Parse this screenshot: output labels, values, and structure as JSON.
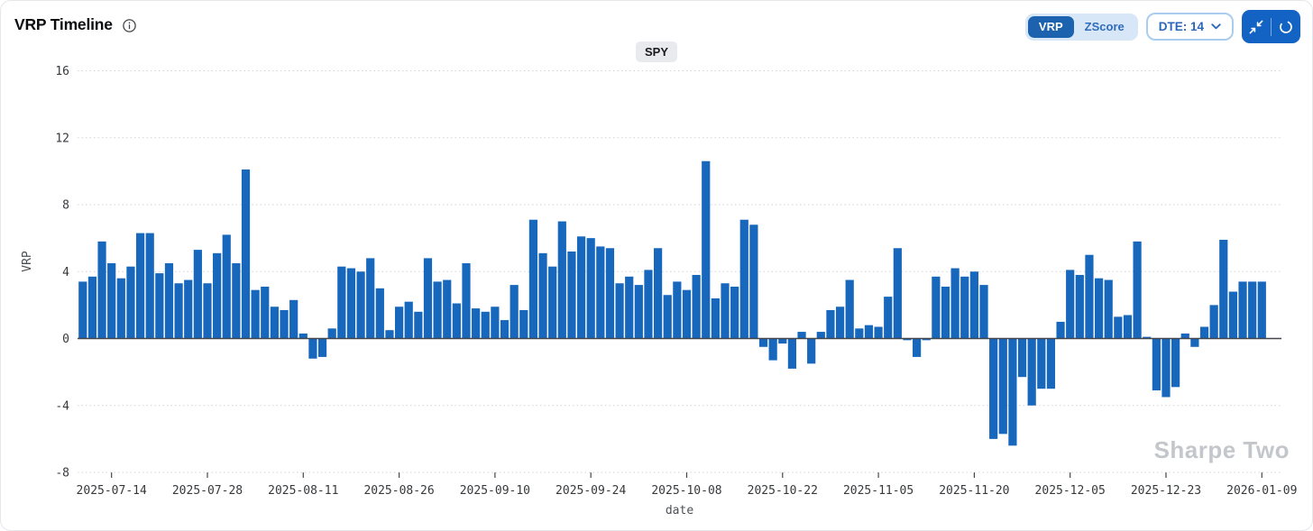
{
  "header": {
    "title": "VRP Timeline"
  },
  "controls": {
    "toggle": {
      "options": [
        "VRP",
        "ZScore"
      ],
      "selected": "VRP"
    },
    "dte_label": "DTE: 14"
  },
  "watermark": "Sharpe Two",
  "chart_data": {
    "type": "bar",
    "title": "VRP Timeline",
    "symbol": "SPY",
    "xlabel": "date",
    "ylabel": "VRP",
    "ylim": [
      -8,
      16
    ],
    "yticks": [
      16,
      12,
      8,
      4,
      0,
      -4,
      -8
    ],
    "grid": true,
    "legend": "none",
    "bar_color": "#1767bd",
    "zero_line_color": "#43474b",
    "grid_color": "#cfd3d8",
    "x_tick_labels": [
      "2025-07-14",
      "2025-07-28",
      "2025-08-11",
      "2025-08-26",
      "2025-09-10",
      "2025-09-24",
      "2025-10-08",
      "2025-10-22",
      "2025-11-05",
      "2025-11-20",
      "2025-12-05",
      "2025-12-23",
      "2026-01-09"
    ],
    "x_tick_indices": [
      3,
      13,
      23,
      33,
      43,
      53,
      63,
      73,
      83,
      93,
      103,
      113,
      123
    ],
    "values": [
      3.4,
      3.7,
      5.8,
      4.5,
      3.6,
      4.3,
      6.3,
      6.3,
      3.9,
      4.5,
      3.3,
      3.5,
      5.3,
      3.3,
      5.1,
      6.2,
      4.5,
      10.1,
      2.9,
      3.1,
      1.9,
      1.7,
      2.3,
      0.3,
      -1.2,
      -1.1,
      0.6,
      4.3,
      4.2,
      4.0,
      4.8,
      3.0,
      0.5,
      1.9,
      2.2,
      1.6,
      4.8,
      3.4,
      3.5,
      2.1,
      4.5,
      1.8,
      1.6,
      1.9,
      1.1,
      3.2,
      1.7,
      7.1,
      5.1,
      4.3,
      7.0,
      5.2,
      6.1,
      6.0,
      5.5,
      5.4,
      3.3,
      3.7,
      3.2,
      4.1,
      5.4,
      2.6,
      3.4,
      2.9,
      3.8,
      10.6,
      2.4,
      3.3,
      3.1,
      7.1,
      6.8,
      -0.5,
      -1.3,
      -0.3,
      -1.8,
      0.4,
      -1.5,
      0.4,
      1.7,
      1.9,
      3.5,
      0.6,
      0.8,
      0.7,
      2.5,
      5.4,
      -0.1,
      -1.1,
      -0.1,
      3.7,
      3.1,
      4.2,
      3.7,
      4.0,
      3.2,
      -6.0,
      -5.7,
      -6.4,
      -2.3,
      -4.0,
      -3.0,
      -3.0,
      1.0,
      4.1,
      3.8,
      5.0,
      3.6,
      3.5,
      1.3,
      1.4,
      5.8,
      0.1,
      -3.1,
      -3.5,
      -2.9,
      0.3,
      -0.5,
      0.7,
      2.0,
      5.9,
      2.8,
      3.4,
      3.4,
      3.4
    ]
  }
}
